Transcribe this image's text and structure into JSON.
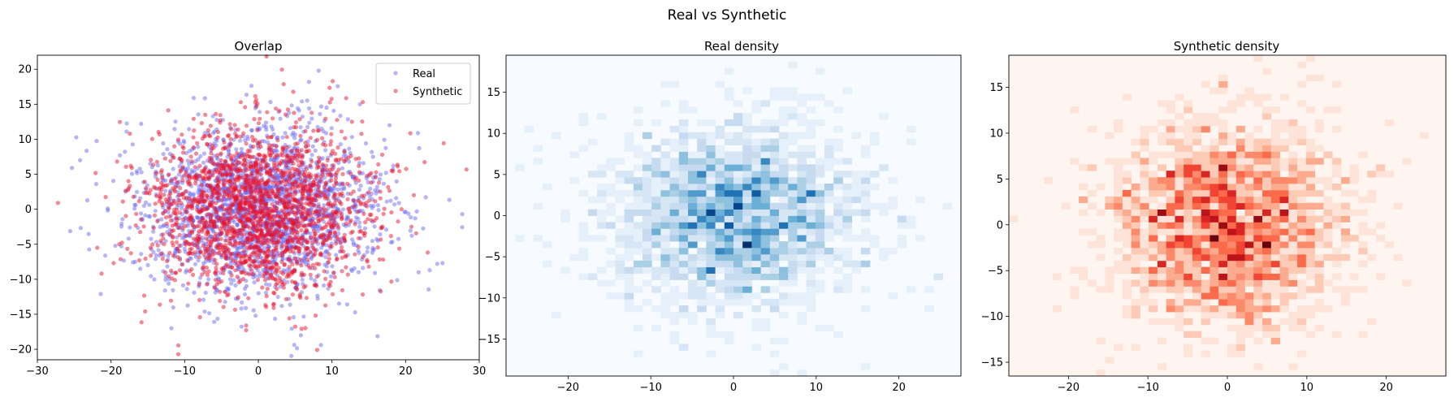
{
  "suptitle": "Real vs Synthetic",
  "colors": {
    "real": "#6b6bf2",
    "synthetic": "#e8112d",
    "blues_low": "#f7fbff",
    "blues_high": "#08306b",
    "reds_low": "#fff5f0",
    "reds_high": "#67000d"
  },
  "chart_data": [
    {
      "type": "scatter",
      "title": "Overlap",
      "xlim": [
        -30,
        30
      ],
      "ylim": [
        -21.5,
        22
      ],
      "xticks": [
        -30,
        -20,
        -10,
        0,
        10,
        20,
        30
      ],
      "yticks": [
        -20,
        -15,
        -10,
        -5,
        0,
        5,
        10,
        15,
        20
      ],
      "legend_position": "upper right",
      "series": [
        {
          "name": "Real",
          "distribution": "bivariate normal",
          "mean": [
            0,
            0
          ],
          "std": [
            8,
            6
          ],
          "n": 2000,
          "alpha": 0.5
        },
        {
          "name": "Synthetic",
          "distribution": "bivariate normal",
          "mean": [
            0,
            0
          ],
          "std": [
            7.5,
            6
          ],
          "n": 2000,
          "alpha": 0.5
        }
      ],
      "notable_points": {
        "x": [
          -27.2,
          -25.3,
          -24.2,
          27.7,
          25.0,
          24.3,
          8.2,
          8.5,
          10.1,
          -11.8,
          -21.4
        ],
        "y": [
          0.9,
          5.9,
          7.0,
          -0.7,
          -7.7,
          -7.8,
          19.8,
          -19.4,
          18.3,
          -17.0,
          -12.1
        ],
        "series": [
          "Synthetic",
          "Real",
          "Real",
          "Real",
          "Real",
          "Real",
          "Real",
          "Real",
          "Synthetic",
          "Real",
          "Real"
        ]
      }
    },
    {
      "type": "heatmap",
      "title": "Real density",
      "colormap": "Blues",
      "bins": [
        50,
        50
      ],
      "xlim": [
        -27.5,
        27.5
      ],
      "ylim": [
        -19.5,
        19.5
      ],
      "xticks": [
        -20,
        -10,
        0,
        10,
        20
      ],
      "yticks": [
        -15,
        -10,
        -5,
        0,
        5,
        10,
        15
      ],
      "source_series": "Real"
    },
    {
      "type": "heatmap",
      "title": "Synthetic density",
      "colormap": "Reds",
      "bins": [
        50,
        50
      ],
      "xlim": [
        -27.5,
        27.5
      ],
      "ylim": [
        -16.5,
        18.5
      ],
      "xticks": [
        -20,
        -10,
        0,
        10,
        20
      ],
      "yticks": [
        -15,
        -10,
        -5,
        0,
        5,
        10,
        15
      ],
      "source_series": "Synthetic"
    }
  ]
}
